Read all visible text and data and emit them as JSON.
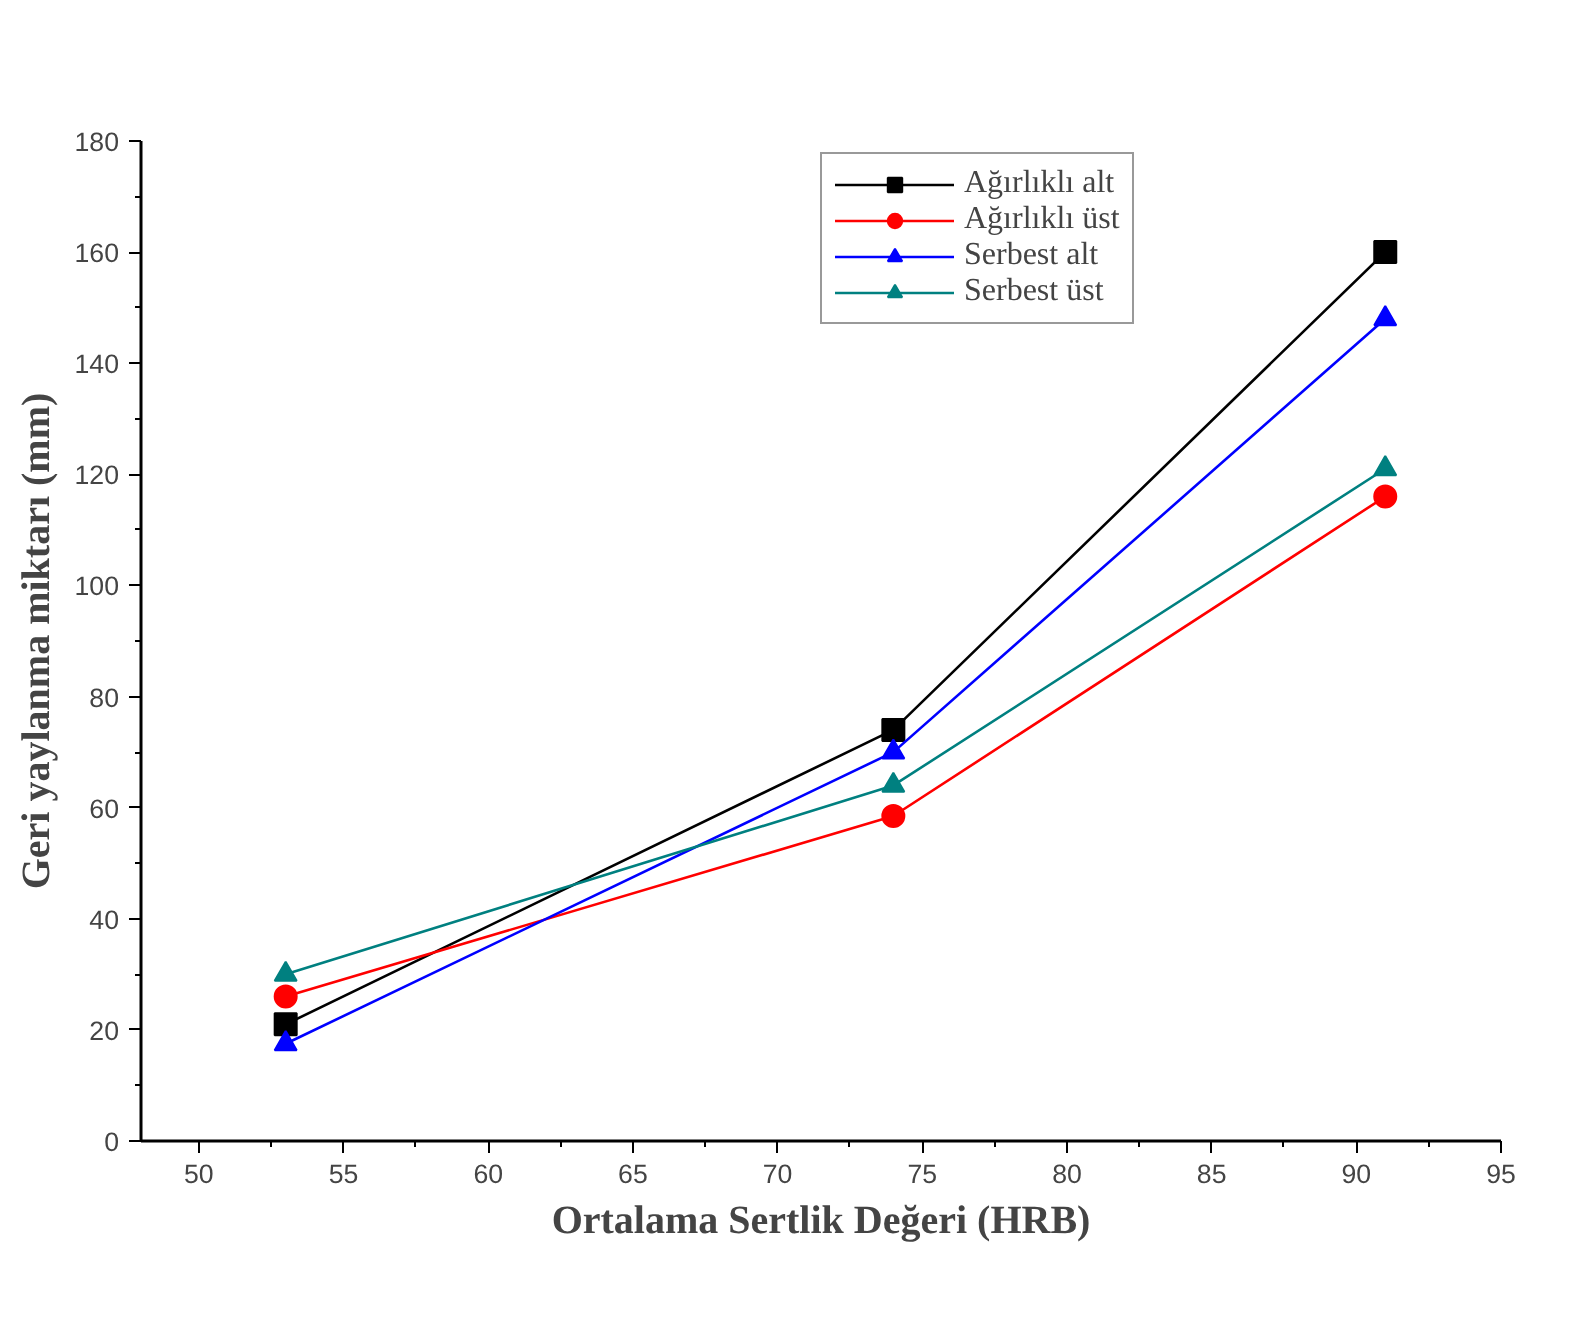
{
  "chart_data": {
    "type": "line",
    "xlabel": "Ortalama Sertlik Değeri (HRB)",
    "ylabel": "Geri yaylanma miktarı (mm)",
    "x": [
      53,
      74,
      91
    ],
    "series": [
      {
        "name": "Ağırlıklı alt",
        "color": "#000000",
        "marker": "square",
        "values": [
          21,
          74,
          160
        ]
      },
      {
        "name": "Ağırlıklı üst",
        "color": "#ff0000",
        "marker": "circle",
        "values": [
          26,
          58.5,
          116
        ]
      },
      {
        "name": "Serbest alt",
        "color": "#0000ff",
        "marker": "triangle",
        "values": [
          17.5,
          70,
          148
        ]
      },
      {
        "name": "Serbest üst",
        "color": "#008080",
        "marker": "triangle",
        "values": [
          30,
          64,
          121
        ]
      }
    ],
    "xlim": [
      48,
      95
    ],
    "xticks": [
      50,
      55,
      60,
      65,
      70,
      75,
      80,
      85,
      90,
      95
    ],
    "ylim": [
      0,
      180
    ],
    "yticks": [
      0,
      20,
      40,
      60,
      80,
      100,
      120,
      140,
      160,
      180
    ],
    "grid": false,
    "legend": "top right"
  }
}
